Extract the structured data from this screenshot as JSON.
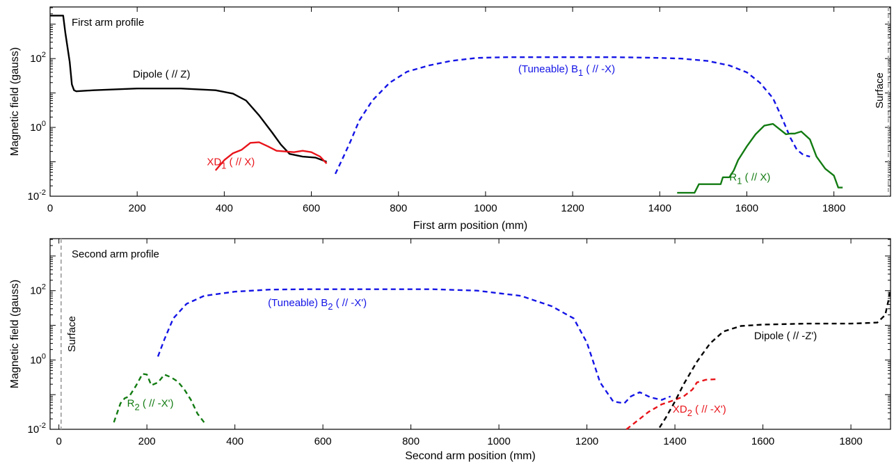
{
  "chart_data": [
    {
      "type": "line",
      "title": "",
      "panel_label": "First arm profile",
      "xlabel": "First arm position (mm)",
      "ylabel": "Magnetic field (gauss)",
      "xlim": [
        0,
        1930
      ],
      "ylim_log10": [
        -2,
        3.5
      ],
      "yscale": "log",
      "xticks": [
        0,
        200,
        400,
        600,
        800,
        1000,
        1200,
        1400,
        1600,
        1800
      ],
      "yticks": [
        {
          "exp": -2,
          "label_base": "10",
          "label_exp": "-2"
        },
        {
          "exp": 0,
          "label_base": "10",
          "label_exp": "0"
        },
        {
          "exp": 2,
          "label_base": "10",
          "label_exp": "2"
        }
      ],
      "vline": {
        "x": 1925,
        "label": "Surface",
        "color": "#aaaaaa"
      },
      "series": [
        {
          "name": "Dipole ( // Z)",
          "color": "#000000",
          "dash": "solid",
          "label": {
            "text": "Dipole ( // Z)",
            "sub": "",
            "tail": "",
            "x": 190,
            "y": 1.45
          },
          "x": [
            0,
            30,
            35,
            45,
            50,
            55,
            60,
            100,
            200,
            300,
            380,
            420,
            450,
            480,
            510,
            530,
            550,
            580,
            610,
            635
          ],
          "y": [
            3.25,
            3.25,
            2.75,
            1.9,
            1.25,
            1.08,
            1.05,
            1.08,
            1.13,
            1.13,
            1.08,
            0.98,
            0.78,
            0.35,
            -0.15,
            -0.5,
            -0.77,
            -0.85,
            -0.88,
            -1.0
          ]
        },
        {
          "name": "XD1 ( // X)",
          "color": "#e8141a",
          "dash": "solid",
          "label": {
            "text": "XD",
            "sub": "1",
            "tail": " ( // X)",
            "x": 360,
            "y": -1.1
          },
          "x": [
            380,
            400,
            420,
            440,
            460,
            480,
            500,
            520,
            540,
            560,
            580,
            600,
            620,
            635
          ],
          "y": [
            -1.25,
            -0.95,
            -0.75,
            -0.65,
            -0.45,
            -0.43,
            -0.55,
            -0.68,
            -0.7,
            -0.72,
            -0.68,
            -0.72,
            -0.85,
            -1.05
          ]
        },
        {
          "name": "(Tuneable) B1 ( // -X)",
          "color": "#1414e6",
          "dash": "dash",
          "label": {
            "text": "(Tuneable) B",
            "sub": "1",
            "tail": " ( // -X)",
            "x": 1075,
            "y": 1.6
          },
          "x": [
            655,
            670,
            690,
            710,
            740,
            780,
            820,
            870,
            920,
            980,
            1050,
            1150,
            1300,
            1400,
            1450,
            1510,
            1560,
            1600,
            1630,
            1660,
            1680,
            1700,
            1715,
            1730,
            1745
          ],
          "y": [
            -1.35,
            -0.95,
            -0.4,
            0.2,
            0.78,
            1.3,
            1.62,
            1.8,
            1.93,
            2.02,
            2.04,
            2.04,
            2.04,
            2.02,
            2.0,
            1.93,
            1.8,
            1.6,
            1.3,
            0.85,
            0.3,
            -0.3,
            -0.65,
            -0.8,
            -0.85
          ]
        },
        {
          "name": "R1 ( // X)",
          "color": "#127b12",
          "dash": "solid",
          "label": {
            "text": "R",
            "sub": "1",
            "tail": " ( // X)",
            "x": 1560,
            "y": -1.55
          },
          "x": [
            1440,
            1480,
            1490,
            1540,
            1545,
            1560,
            1570,
            1580,
            1600,
            1620,
            1640,
            1660,
            1675,
            1690,
            1700,
            1710,
            1725,
            1745,
            1760,
            1780,
            1800,
            1810,
            1820
          ],
          "y": [
            -1.9,
            -1.9,
            -1.65,
            -1.65,
            -1.45,
            -1.45,
            -1.25,
            -0.95,
            -0.55,
            -0.2,
            0.05,
            0.1,
            -0.05,
            -0.2,
            -0.18,
            -0.18,
            -0.12,
            -0.35,
            -0.85,
            -1.2,
            -1.4,
            -1.75,
            -1.75
          ]
        }
      ]
    },
    {
      "type": "line",
      "title": "",
      "panel_label": "Second arm profile",
      "xlabel": "Second arm position (mm)",
      "ylabel": "Magnetic field (gauss)",
      "xlim": [
        -20,
        1890
      ],
      "ylim_log10": [
        -2,
        3.5
      ],
      "yscale": "log",
      "xticks": [
        0,
        200,
        400,
        600,
        800,
        1000,
        1200,
        1400,
        1600,
        1800
      ],
      "yticks": [
        {
          "exp": -2,
          "label_base": "10",
          "label_exp": "-2"
        },
        {
          "exp": 0,
          "label_base": "10",
          "label_exp": "0"
        },
        {
          "exp": 2,
          "label_base": "10",
          "label_exp": "2"
        }
      ],
      "vline": {
        "x": 5,
        "label": "Surface",
        "color": "#aaaaaa"
      },
      "series": [
        {
          "name": "(Tuneable) B2 ( // -X')",
          "color": "#1414e6",
          "dash": "dash",
          "label": {
            "text": "(Tuneable) B",
            "sub": "2",
            "tail": " ( // -X')",
            "x": 475,
            "y": 1.55
          },
          "x": [
            225,
            240,
            260,
            290,
            330,
            400,
            480,
            560,
            650,
            750,
            850,
            950,
            1050,
            1120,
            1170,
            1200,
            1230,
            1260,
            1285,
            1300,
            1320,
            1345,
            1370,
            1390
          ],
          "y": [
            0.1,
            0.6,
            1.2,
            1.62,
            1.85,
            1.97,
            2.03,
            2.04,
            2.04,
            2.04,
            2.04,
            2.0,
            1.85,
            1.55,
            1.2,
            0.5,
            -0.65,
            -1.2,
            -1.25,
            -1.05,
            -0.93,
            -1.08,
            -1.15,
            -1.05
          ]
        },
        {
          "name": "R2 ( // -X')",
          "color": "#127b12",
          "dash": "dash",
          "label": {
            "text": "R",
            "sub": "2",
            "tail": " ( // -X')",
            "x": 155,
            "y": -1.35
          },
          "x": [
            125,
            140,
            150,
            160,
            175,
            190,
            200,
            210,
            225,
            240,
            255,
            270,
            285,
            300,
            315,
            330
          ],
          "y": [
            -1.8,
            -1.25,
            -1.1,
            -1.05,
            -0.75,
            -0.4,
            -0.42,
            -0.73,
            -0.65,
            -0.42,
            -0.5,
            -0.62,
            -0.85,
            -1.15,
            -1.55,
            -1.8
          ]
        },
        {
          "name": "XD2 ( // -X')",
          "color": "#e8141a",
          "dash": "dash",
          "label": {
            "text": "XD",
            "sub": "2",
            "tail": " ( // -X')",
            "x": 1395,
            "y": -1.52
          },
          "x": [
            1290,
            1310,
            1340,
            1370,
            1400,
            1420,
            1440,
            1450,
            1470,
            1500
          ],
          "y": [
            -2.0,
            -1.8,
            -1.5,
            -1.28,
            -1.15,
            -1.05,
            -0.85,
            -0.65,
            -0.57,
            -0.55
          ]
        },
        {
          "name": "Dipole ( // -Z')",
          "color": "#000000",
          "dash": "dash",
          "label": {
            "text": "Dipole ( // -Z')",
            "sub": "",
            "tail": "",
            "x": 1580,
            "y": 0.6
          },
          "x": [
            1365,
            1380,
            1400,
            1420,
            1450,
            1480,
            1510,
            1550,
            1600,
            1700,
            1800,
            1860,
            1878,
            1885,
            1890
          ],
          "y": [
            -1.95,
            -1.65,
            -1.2,
            -0.7,
            -0.05,
            0.48,
            0.82,
            0.98,
            1.02,
            1.05,
            1.05,
            1.08,
            1.3,
            1.7,
            2.05
          ]
        }
      ]
    }
  ]
}
